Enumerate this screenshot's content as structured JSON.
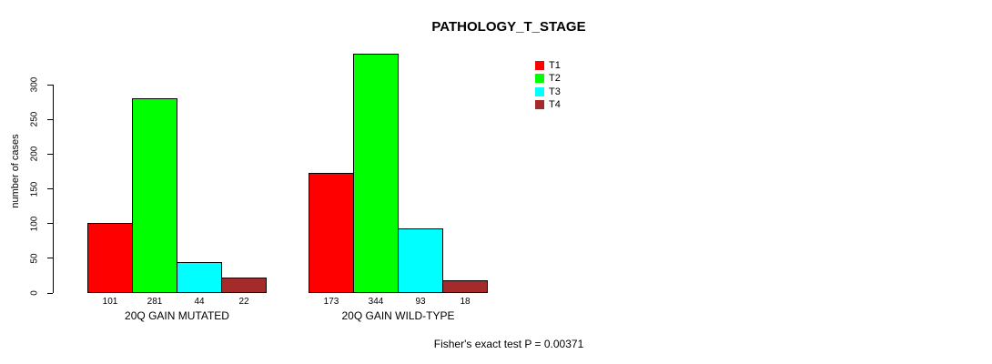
{
  "chart_data": {
    "type": "bar",
    "title": "PATHOLOGY_T_STAGE",
    "xlabel": "",
    "ylabel": "number of cases",
    "categories": [
      "20Q GAIN MUTATED",
      "20Q GAIN WILD-TYPE"
    ],
    "series": [
      {
        "name": "T1",
        "color": "#FF0000",
        "values": [
          101,
          173
        ]
      },
      {
        "name": "T2",
        "color": "#00FF00",
        "values": [
          281,
          344
        ]
      },
      {
        "name": "T3",
        "color": "#00FFFF",
        "values": [
          44,
          93
        ]
      },
      {
        "name": "T4",
        "color": "#A52A2A",
        "values": [
          22,
          18
        ]
      }
    ],
    "yticks": [
      0,
      50,
      100,
      150,
      200,
      250,
      300
    ],
    "ylim": [
      0,
      344
    ],
    "bar_labels": [
      [
        101,
        281,
        44,
        22
      ],
      [
        173,
        344,
        93,
        18
      ]
    ],
    "annotation": "Fisher's exact test P = 0.00371",
    "legend_position": "top-right",
    "grid": false,
    "axis_color": "#000000",
    "background_color": "#FFFFFF"
  }
}
